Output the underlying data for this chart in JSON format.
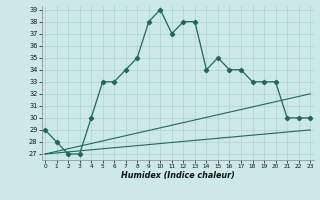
{
  "xlabel": "Humidex (Indice chaleur)",
  "x": [
    0,
    1,
    2,
    3,
    4,
    5,
    6,
    7,
    8,
    9,
    10,
    11,
    12,
    13,
    14,
    15,
    16,
    17,
    18,
    19,
    20,
    21,
    22,
    23
  ],
  "line1": [
    29,
    28,
    27,
    27,
    30,
    33,
    33,
    34,
    35,
    38,
    39,
    37,
    38,
    38,
    34,
    35,
    34,
    34,
    33,
    33,
    33,
    30,
    30,
    30
  ],
  "line2_x": [
    0,
    23
  ],
  "line2_y": [
    27,
    29
  ],
  "line3_x": [
    0,
    23
  ],
  "line3_y": [
    27,
    32
  ],
  "bg_color": "#cce8e8",
  "line_color": "#1a6b5a",
  "ylim_min": 26.5,
  "ylim_max": 39.3,
  "yticks": [
    27,
    28,
    29,
    30,
    31,
    32,
    33,
    34,
    35,
    36,
    37,
    38,
    39
  ],
  "xticks": [
    0,
    1,
    2,
    3,
    4,
    5,
    6,
    7,
    8,
    9,
    10,
    11,
    12,
    13,
    14,
    15,
    16,
    17,
    18,
    19,
    20,
    21,
    22,
    23
  ],
  "grid_color": "#aad4d4"
}
